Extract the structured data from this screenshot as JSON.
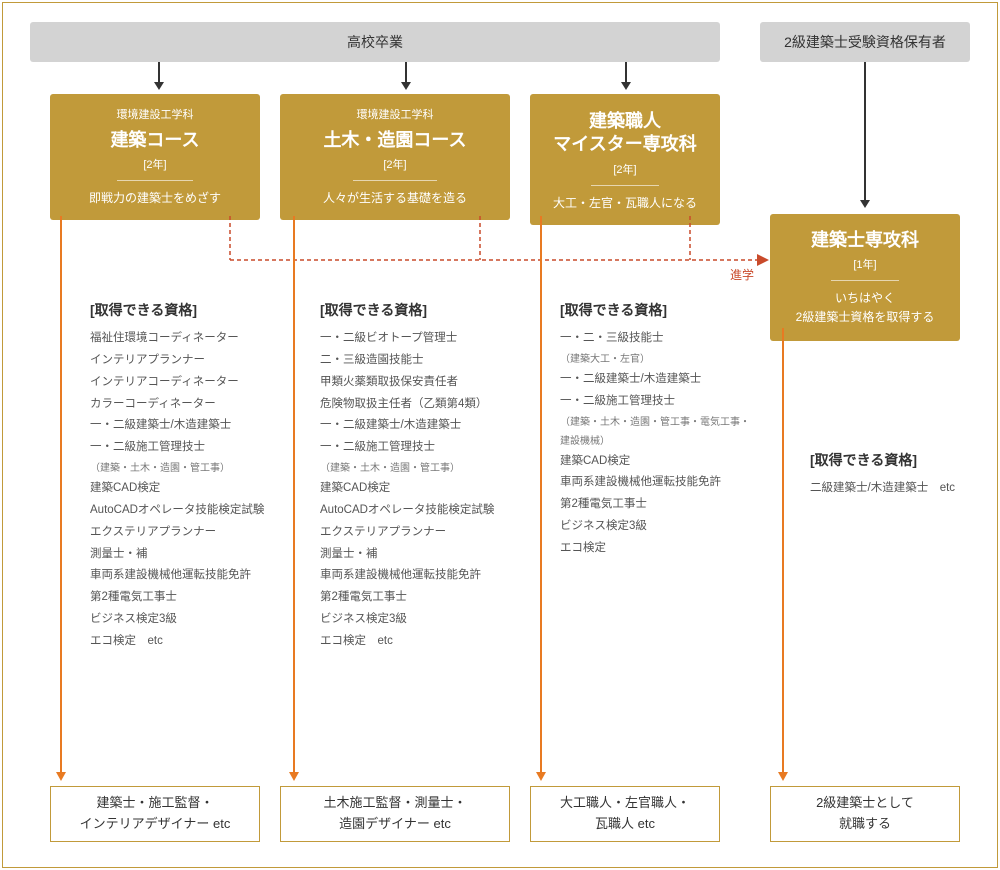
{
  "layout": {
    "frame_border_color": "#c19a3a",
    "top_box_bg": "#d3d3d3",
    "course_box_bg": "#c19a3a",
    "orange": "#e87a22",
    "dashed_red": "#c94a2a",
    "text_color": "#333",
    "muted_text": "#555"
  },
  "top_left": {
    "label": "高校卒業"
  },
  "top_right": {
    "label": "2級建築士受験資格保有者"
  },
  "courses": [
    {
      "dept": "環境建設工学科",
      "title": "建築コース",
      "years": "[2年]",
      "sub": "即戦力の建築士をめざす"
    },
    {
      "dept": "環境建設工学科",
      "title": "土木・造園コース",
      "years": "[2年]",
      "sub": "人々が生活する基礎を造る"
    },
    {
      "dept": "",
      "title": "建築職人\nマイスター専攻科",
      "years": "[2年]",
      "sub": "大工・左官・瓦職人になる"
    }
  ],
  "senkou": {
    "title": "建築士専攻科",
    "years": "[1年]",
    "sub": "いちはやく\n2級建築士資格を取得する"
  },
  "shingaku": "進学",
  "qual_head": "[取得できる資格]",
  "quals": [
    [
      "福祉住環境コーディネーター",
      "インテリアプランナー",
      "インテリアコーディネーター",
      "カラーコーディネーター",
      "一・二級建築士/木造建築士",
      "一・二級施工管理技士",
      "（建築・土木・造園・管工事）",
      "建築CAD検定",
      "AutoCADオペレータ技能検定試験",
      "エクステリアプランナー",
      "測量士・補",
      "車両系建設機械他運転技能免許",
      "第2種電気工事士",
      "ビジネス検定3級",
      "エコ検定　etc"
    ],
    [
      "一・二級ビオトープ管理士",
      "二・三級造園技能士",
      "甲類火薬類取扱保安責任者",
      "危険物取扱主任者（乙類第4類）",
      "一・二級建築士/木造建築士",
      "一・二級施工管理技士",
      "（建築・土木・造園・管工事）",
      "建築CAD検定",
      "AutoCADオペレータ技能検定試験",
      "エクステリアプランナー",
      "測量士・補",
      "車両系建設機械他運転技能免許",
      "第2種電気工事士",
      "ビジネス検定3級",
      "エコ検定　etc"
    ],
    [
      "一・二・三級技能士",
      "（建築大工・左官）",
      "一・二級建築士/木造建築士",
      "一・二級施工管理技士",
      "（建築・土木・造園・管工事・電気工事・建設機械）",
      "建築CAD検定",
      "車両系建設機械他運転技能免許",
      "第2種電気工事士",
      "ビジネス検定3級",
      "エコ検定"
    ],
    [
      "二級建築士/木造建築士　etc"
    ]
  ],
  "careers": [
    "建築士・施工監督・\nインテリアデザイナー etc",
    "土木施工監督・測量士・\n造園デザイナー etc",
    "大工職人・左官職人・\n瓦職人 etc",
    "2級建築士として\n就職する"
  ]
}
